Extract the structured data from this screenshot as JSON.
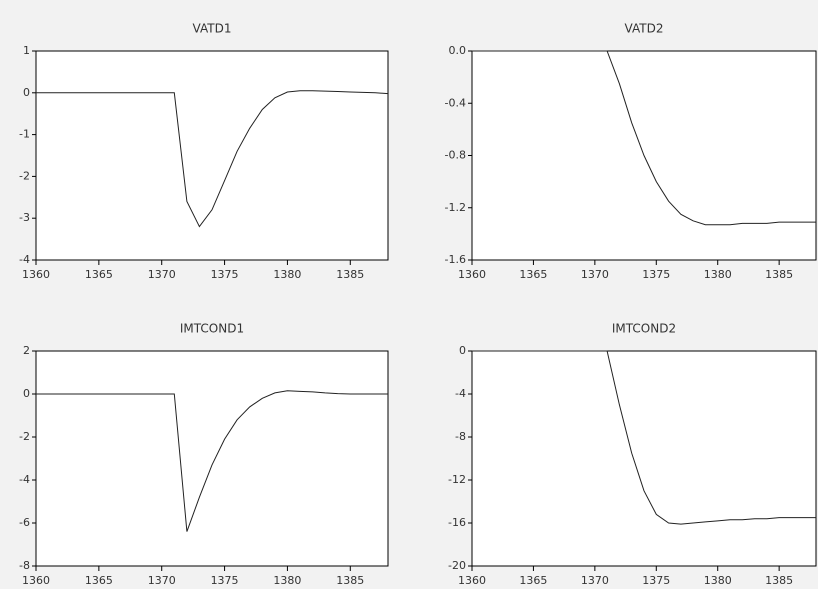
{
  "chart_data": [
    {
      "type": "line",
      "title": "VATD1",
      "color": "#222222",
      "x": [
        1360,
        1361,
        1362,
        1363,
        1364,
        1365,
        1366,
        1367,
        1368,
        1369,
        1370,
        1371,
        1372,
        1373,
        1374,
        1375,
        1376,
        1377,
        1378,
        1379,
        1380,
        1381,
        1382,
        1383,
        1384,
        1385,
        1386,
        1387,
        1388
      ],
      "values": [
        0,
        0,
        0,
        0,
        0,
        0,
        0,
        0,
        0,
        0,
        0,
        0,
        -2.6,
        -3.2,
        -2.8,
        -2.1,
        -1.4,
        -0.85,
        -0.4,
        -0.12,
        0.02,
        0.05,
        0.05,
        0.04,
        0.03,
        0.02,
        0.01,
        0,
        -0.02
      ],
      "xlim": [
        1360,
        1388
      ],
      "xticks": [
        1360,
        1365,
        1370,
        1375,
        1380,
        1385
      ],
      "ylim": [
        -4,
        1
      ],
      "yticks": [
        1,
        0,
        -1,
        -2,
        -3,
        -4
      ]
    },
    {
      "type": "line",
      "title": "VATD2",
      "color": "#222222",
      "x": [
        1360,
        1361,
        1362,
        1363,
        1364,
        1365,
        1366,
        1367,
        1368,
        1369,
        1370,
        1371,
        1372,
        1373,
        1374,
        1375,
        1376,
        1377,
        1378,
        1379,
        1380,
        1381,
        1382,
        1383,
        1384,
        1385,
        1386,
        1387,
        1388
      ],
      "values": [
        0,
        0,
        0,
        0,
        0,
        0,
        0,
        0,
        0,
        0,
        0,
        0,
        -0.25,
        -0.55,
        -0.8,
        -1.0,
        -1.15,
        -1.25,
        -1.3,
        -1.33,
        -1.33,
        -1.33,
        -1.32,
        -1.32,
        -1.32,
        -1.31,
        -1.31,
        -1.31,
        -1.31
      ],
      "xlim": [
        1360,
        1388
      ],
      "xticks": [
        1360,
        1365,
        1370,
        1375,
        1380,
        1385
      ],
      "ylim": [
        -1.6,
        0
      ],
      "yticks": [
        {
          "value": 0,
          "label": "0.0"
        },
        -0.4,
        -0.8,
        -1.2,
        -1.6
      ]
    },
    {
      "type": "line",
      "title": "IMTCOND1",
      "color": "#222222",
      "x": [
        1360,
        1361,
        1362,
        1363,
        1364,
        1365,
        1366,
        1367,
        1368,
        1369,
        1370,
        1371,
        1372,
        1373,
        1374,
        1375,
        1376,
        1377,
        1378,
        1379,
        1380,
        1381,
        1382,
        1383,
        1384,
        1385,
        1386,
        1387,
        1388
      ],
      "values": [
        0,
        0,
        0,
        0,
        0,
        0,
        0,
        0,
        0,
        0,
        0,
        0,
        -6.4,
        -4.8,
        -3.3,
        -2.1,
        -1.2,
        -0.6,
        -0.2,
        0.05,
        0.15,
        0.12,
        0.1,
        0.05,
        0.02,
        0,
        0,
        0,
        0
      ],
      "xlim": [
        1360,
        1388
      ],
      "xticks": [
        1360,
        1365,
        1370,
        1375,
        1380,
        1385
      ],
      "ylim": [
        -8,
        2
      ],
      "yticks": [
        2,
        0,
        -2,
        -4,
        -6,
        -8
      ]
    },
    {
      "type": "line",
      "title": "IMTCOND2",
      "color": "#222222",
      "x": [
        1360,
        1361,
        1362,
        1363,
        1364,
        1365,
        1366,
        1367,
        1368,
        1369,
        1370,
        1371,
        1372,
        1373,
        1374,
        1375,
        1376,
        1377,
        1378,
        1379,
        1380,
        1381,
        1382,
        1383,
        1384,
        1385,
        1386,
        1387,
        1388
      ],
      "values": [
        0,
        0,
        0,
        0,
        0,
        0,
        0,
        0,
        0,
        0,
        0,
        0,
        -5,
        -9.5,
        -13,
        -15.2,
        -16,
        -16.1,
        -16,
        -15.9,
        -15.8,
        -15.7,
        -15.7,
        -15.6,
        -15.6,
        -15.5,
        -15.5,
        -15.5,
        -15.5
      ],
      "xlim": [
        1360,
        1388
      ],
      "xticks": [
        1360,
        1365,
        1370,
        1375,
        1380,
        1385
      ],
      "ylim": [
        -20,
        0
      ],
      "yticks": [
        0,
        -4,
        -8,
        -12,
        -16,
        -20
      ]
    }
  ]
}
